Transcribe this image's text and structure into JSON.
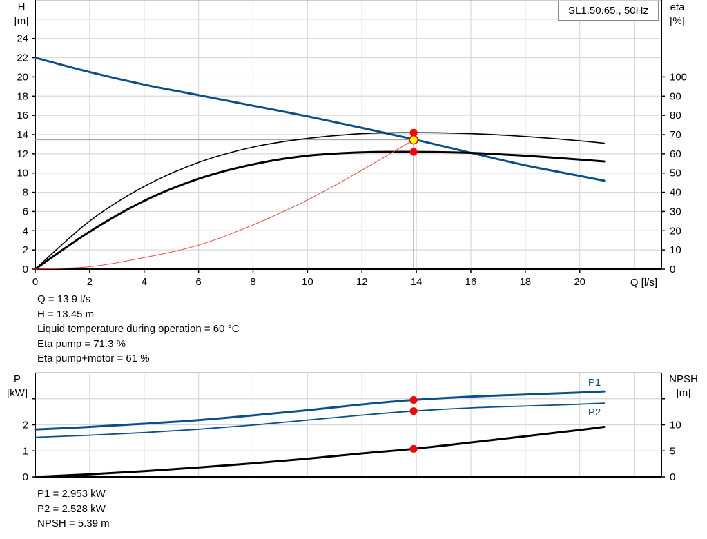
{
  "chart_data": [
    {
      "type": "line",
      "title": "SL1.50.65., 50Hz",
      "xlabel": "Q [l/s]",
      "ylabel": "H [m]",
      "ylabel_name": "H",
      "ylabel_unit": "[m]",
      "y2label_name": "eta",
      "y2label_unit": "[%]",
      "xlim": [
        0,
        23
      ],
      "ylim": [
        0,
        28
      ],
      "y2lim": [
        0,
        140
      ],
      "xticks": [
        0,
        2,
        4,
        6,
        8,
        10,
        12,
        14,
        16,
        18,
        20
      ],
      "yticks": [
        0,
        2,
        4,
        6,
        8,
        10,
        12,
        14,
        16,
        18,
        20,
        22,
        24
      ],
      "y2ticks": [
        0,
        10,
        20,
        30,
        40,
        50,
        60,
        70,
        80,
        90,
        100
      ],
      "grid": true,
      "series": [
        {
          "name": "system-curve",
          "color": "#0b4f8a",
          "width": 3,
          "x": [
            0,
            2,
            4,
            6,
            8,
            10,
            12,
            14,
            16,
            18,
            20,
            20.9
          ],
          "y": [
            22,
            20.5,
            19.2,
            18.1,
            17.0,
            15.9,
            14.7,
            13.45,
            12.1,
            10.8,
            9.7,
            9.2
          ]
        },
        {
          "name": "H-curve-max",
          "color": "#000000",
          "width": 1.6,
          "x": [
            0,
            2,
            4,
            6,
            8,
            10,
            12,
            14,
            16,
            18,
            20,
            20.9
          ],
          "y": [
            0,
            5.0,
            8.6,
            11.1,
            12.7,
            13.6,
            14.1,
            14.2,
            14.1,
            13.8,
            13.35,
            13.1
          ]
        },
        {
          "name": "H-curve",
          "color": "#000000",
          "width": 3,
          "x": [
            0,
            2,
            4,
            6,
            8,
            10,
            12,
            14,
            16,
            18,
            20,
            20.9
          ],
          "y": [
            0,
            3.9,
            7.1,
            9.4,
            10.9,
            11.8,
            12.15,
            12.2,
            12.1,
            11.8,
            11.4,
            11.2
          ]
        },
        {
          "name": "eta-curve",
          "color": "#ff4040",
          "width": 1,
          "x": [
            0,
            2,
            4,
            6,
            8,
            10,
            12,
            13.9
          ],
          "y": [
            0,
            0.25,
            1.2,
            2.5,
            4.6,
            7.2,
            10.3,
            13.45
          ]
        }
      ],
      "operating_point": {
        "Q": 13.9,
        "H": 13.45
      },
      "markers": [
        {
          "x": 13.9,
          "y": 14.2,
          "color": "#ff0000"
        },
        {
          "x": 13.9,
          "y": 12.2,
          "color": "#ff0000"
        },
        {
          "x": 13.9,
          "y": 13.45,
          "color": "#ffff00"
        }
      ]
    },
    {
      "type": "line",
      "ylabel_name": "P",
      "ylabel_unit": "[kW]",
      "y2label_name": "NPSH",
      "y2label_unit": "[m]",
      "xlim": [
        0,
        23
      ],
      "ylim": [
        0,
        4
      ],
      "y2lim": [
        0,
        20
      ],
      "yticks": [
        0,
        1,
        2
      ],
      "y2ticks": [
        0,
        5,
        10
      ],
      "grid": true,
      "series": [
        {
          "name": "P1",
          "label": "P1",
          "axis": "left",
          "color": "#0b4f8a",
          "width": 3,
          "x": [
            0,
            2,
            4,
            6,
            8,
            10,
            12,
            13.9,
            16,
            18,
            20,
            20.9
          ],
          "y": [
            1.82,
            1.92,
            2.04,
            2.18,
            2.36,
            2.56,
            2.78,
            2.953,
            3.08,
            3.16,
            3.24,
            3.28
          ]
        },
        {
          "name": "P2",
          "label": "P2",
          "axis": "left",
          "color": "#0b4f8a",
          "width": 1.8,
          "x": [
            0,
            2,
            4,
            6,
            8,
            10,
            12,
            13.9,
            16,
            18,
            20,
            20.9
          ],
          "y": [
            1.52,
            1.6,
            1.7,
            1.83,
            1.99,
            2.18,
            2.37,
            2.528,
            2.65,
            2.72,
            2.79,
            2.83
          ]
        },
        {
          "name": "NPSH",
          "label": "",
          "axis": "right",
          "color": "#000000",
          "width": 3,
          "x": [
            0,
            2,
            4,
            6,
            8,
            10,
            12,
            13.9,
            16,
            18,
            20,
            20.9
          ],
          "y": [
            0,
            0.5,
            1.1,
            1.8,
            2.6,
            3.5,
            4.5,
            5.39,
            6.6,
            7.8,
            9.0,
            9.6
          ]
        }
      ],
      "markers": [
        {
          "x": 13.9,
          "y": 2.953,
          "axis": "left"
        },
        {
          "x": 13.9,
          "y": 2.528,
          "axis": "left"
        },
        {
          "x": 13.9,
          "y": 5.39,
          "axis": "right"
        }
      ]
    }
  ],
  "readout_top": [
    "Q = 13.9 l/s",
    "H = 13.45 m",
    "Liquid temperature during operation = 60 °C",
    "Eta pump = 71.3 %",
    "Eta pump+motor = 61 %"
  ],
  "readout_bottom": [
    "P1 = 2.953 kW",
    "P2 = 2.528 kW",
    "NPSH = 5.39 m"
  ]
}
